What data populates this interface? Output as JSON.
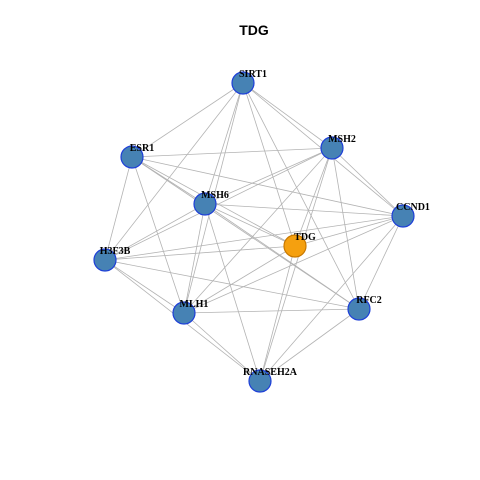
{
  "title": "TDG",
  "colors": {
    "node_fill": "#4682B4",
    "node_stroke": "#1E3FD8",
    "focus_fill": "#F5A00F",
    "focus_stroke": "#C87800",
    "edge": "#B3B3B3"
  },
  "nodes": [
    {
      "id": "SIRT1",
      "label": "SIRT1",
      "focus": false
    },
    {
      "id": "MSH2",
      "label": "MSH2",
      "focus": false
    },
    {
      "id": "ESR1",
      "label": "ESR1",
      "focus": false
    },
    {
      "id": "MSH6",
      "label": "MSH6",
      "focus": false
    },
    {
      "id": "CCND1",
      "label": "CCND1",
      "focus": false
    },
    {
      "id": "TDG",
      "label": "TDG",
      "focus": true
    },
    {
      "id": "H3F3B",
      "label": "H3F3B",
      "focus": false
    },
    {
      "id": "MLH1",
      "label": "MLH1",
      "focus": false
    },
    {
      "id": "RFC2",
      "label": "RFC2",
      "focus": false
    },
    {
      "id": "RNASEH2A",
      "label": "RNASEH2A",
      "focus": false
    }
  ],
  "edges": [
    [
      "SIRT1",
      "ESR1"
    ],
    [
      "SIRT1",
      "MSH6"
    ],
    [
      "SIRT1",
      "CCND1"
    ],
    [
      "SIRT1",
      "TDG"
    ],
    [
      "SIRT1",
      "H3F3B"
    ],
    [
      "SIRT1",
      "MLH1"
    ],
    [
      "SIRT1",
      "RFC2"
    ],
    [
      "SIRT1",
      "MSH2"
    ],
    [
      "MSH2",
      "ESR1"
    ],
    [
      "MSH2",
      "MSH6"
    ],
    [
      "MSH2",
      "CCND1"
    ],
    [
      "MSH2",
      "TDG"
    ],
    [
      "MSH2",
      "MLH1"
    ],
    [
      "MSH2",
      "RFC2"
    ],
    [
      "MSH2",
      "RNASEH2A"
    ],
    [
      "MSH2",
      "H3F3B"
    ],
    [
      "ESR1",
      "MSH6"
    ],
    [
      "ESR1",
      "CCND1"
    ],
    [
      "ESR1",
      "H3F3B"
    ],
    [
      "ESR1",
      "MLH1"
    ],
    [
      "ESR1",
      "RFC2"
    ],
    [
      "ESR1",
      "TDG"
    ],
    [
      "MSH6",
      "CCND1"
    ],
    [
      "MSH6",
      "TDG"
    ],
    [
      "MSH6",
      "H3F3B"
    ],
    [
      "MSH6",
      "MLH1"
    ],
    [
      "MSH6",
      "RFC2"
    ],
    [
      "MSH6",
      "RNASEH2A"
    ],
    [
      "CCND1",
      "TDG"
    ],
    [
      "CCND1",
      "H3F3B"
    ],
    [
      "CCND1",
      "MLH1"
    ],
    [
      "CCND1",
      "RFC2"
    ],
    [
      "CCND1",
      "RNASEH2A"
    ],
    [
      "TDG",
      "H3F3B"
    ],
    [
      "TDG",
      "MLH1"
    ],
    [
      "TDG",
      "RNASEH2A"
    ],
    [
      "H3F3B",
      "RFC2"
    ],
    [
      "H3F3B",
      "RNASEH2A"
    ],
    [
      "H3F3B",
      "MLH1"
    ],
    [
      "MLH1",
      "RNASEH2A"
    ],
    [
      "MLH1",
      "RFC2"
    ],
    [
      "RFC2",
      "RNASEH2A"
    ]
  ]
}
